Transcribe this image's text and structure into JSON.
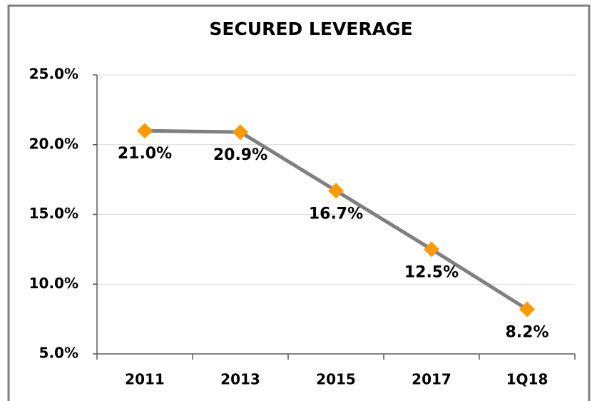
{
  "chart_data": {
    "type": "line",
    "title": "SECURED LEVERAGE",
    "categories": [
      "2011",
      "2013",
      "2015",
      "2017",
      "1Q18"
    ],
    "series": [
      {
        "name": "Secured Leverage",
        "color": "#7f7f7f",
        "marker_color": "#ff9900",
        "values": [
          21.0,
          20.9,
          16.7,
          12.5,
          8.2
        ],
        "value_labels": [
          "21.0%",
          "20.9%",
          "16.7%",
          "12.5%",
          "8.2%"
        ]
      }
    ],
    "ylim": [
      5,
      25
    ],
    "yticks": [
      {
        "value": 5,
        "label": "5.0%"
      },
      {
        "value": 10,
        "label": "10.0%"
      },
      {
        "value": 15,
        "label": "15.0%"
      },
      {
        "value": 20,
        "label": "20.0%"
      },
      {
        "value": 25,
        "label": "25.0%"
      }
    ],
    "grid": true
  }
}
